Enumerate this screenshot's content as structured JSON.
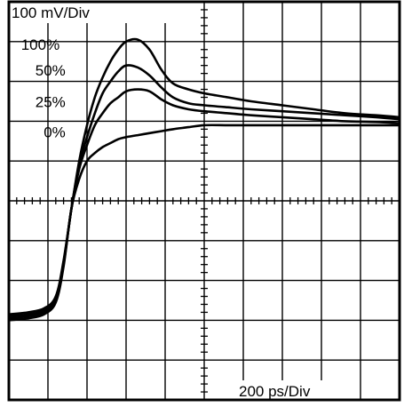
{
  "chart_data": {
    "type": "line",
    "vertical_scale_label": "100 mV/Div",
    "horizontal_scale_label": "200 ps/Div",
    "x_divisions": 10,
    "y_divisions": 10,
    "grid": true,
    "series": [
      {
        "name": "100%",
        "x": [
          0,
          0.5,
          0.9,
          1.2,
          1.4,
          1.6,
          1.8,
          2.0,
          2.2,
          2.4,
          2.6,
          2.8,
          3.0,
          3.3,
          3.6,
          3.9,
          4.2,
          4.6,
          5.0,
          5.6,
          6.2,
          7.0,
          7.8,
          8.6,
          9.4,
          10.0
        ],
        "y": [
          2.15,
          2.2,
          2.3,
          2.6,
          3.5,
          4.8,
          6.0,
          6.9,
          7.6,
          8.1,
          8.5,
          8.8,
          9.0,
          9.05,
          8.8,
          8.3,
          7.95,
          7.8,
          7.7,
          7.6,
          7.5,
          7.4,
          7.3,
          7.2,
          7.15,
          7.1
        ]
      },
      {
        "name": "50%",
        "x": [
          0,
          0.5,
          0.9,
          1.2,
          1.4,
          1.6,
          1.8,
          2.0,
          2.2,
          2.4,
          2.6,
          2.8,
          3.0,
          3.3,
          3.6,
          3.9,
          4.2,
          4.6,
          5.0,
          5.6,
          6.2,
          7.0,
          7.8,
          8.6,
          9.4,
          10.0
        ],
        "y": [
          2.1,
          2.15,
          2.25,
          2.55,
          3.45,
          4.8,
          5.9,
          6.6,
          7.2,
          7.7,
          8.0,
          8.25,
          8.4,
          8.35,
          8.15,
          7.85,
          7.6,
          7.45,
          7.4,
          7.35,
          7.3,
          7.25,
          7.2,
          7.15,
          7.1,
          7.05
        ]
      },
      {
        "name": "25%",
        "x": [
          0,
          0.5,
          0.9,
          1.2,
          1.4,
          1.6,
          1.8,
          2.0,
          2.2,
          2.4,
          2.6,
          2.8,
          3.0,
          3.3,
          3.6,
          3.9,
          4.2,
          4.6,
          5.0,
          5.6,
          6.2,
          7.0,
          7.8,
          8.6,
          9.4,
          10.0
        ],
        "y": [
          2.05,
          2.1,
          2.2,
          2.5,
          3.4,
          4.8,
          5.8,
          6.4,
          6.9,
          7.2,
          7.45,
          7.6,
          7.75,
          7.8,
          7.75,
          7.55,
          7.4,
          7.3,
          7.25,
          7.2,
          7.15,
          7.1,
          7.05,
          7.0,
          6.98,
          6.95
        ]
      },
      {
        "name": "0%",
        "x": [
          0,
          0.5,
          0.9,
          1.2,
          1.4,
          1.6,
          1.8,
          2.0,
          2.2,
          2.4,
          2.6,
          2.8,
          3.0,
          3.3,
          3.6,
          3.9,
          4.2,
          4.6,
          5.0,
          5.6,
          6.2,
          7.0,
          7.8,
          8.6,
          9.4,
          10.0
        ],
        "y": [
          2.0,
          2.05,
          2.15,
          2.45,
          3.35,
          4.8,
          5.55,
          6.0,
          6.2,
          6.35,
          6.45,
          6.55,
          6.6,
          6.65,
          6.7,
          6.75,
          6.8,
          6.85,
          6.9,
          6.9,
          6.9,
          6.9,
          6.9,
          6.9,
          6.9,
          6.9
        ]
      }
    ]
  }
}
